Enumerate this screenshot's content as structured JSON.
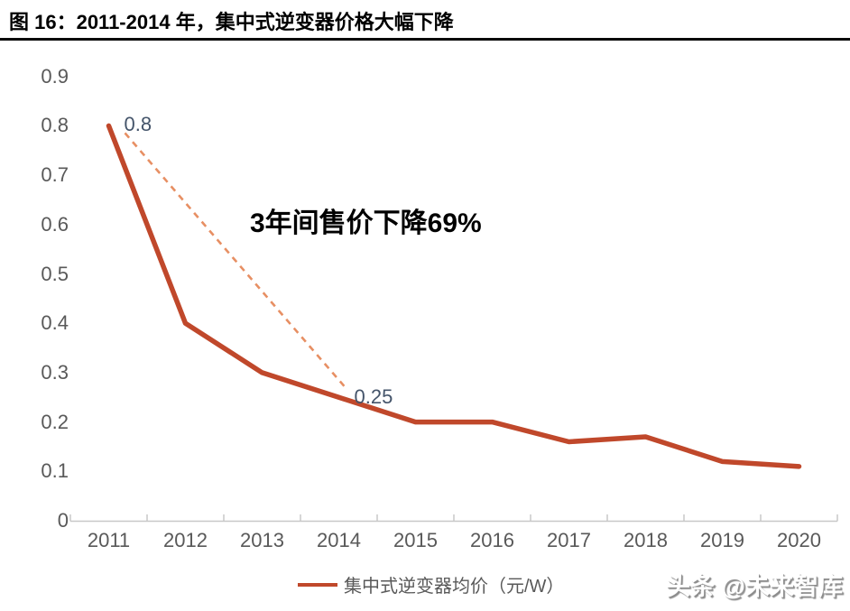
{
  "header": {
    "title": "图 16：2011-2014 年，集中式逆变器价格大幅下降"
  },
  "chart_data": {
    "type": "line",
    "title": "图 16：2011-2014 年，集中式逆变器价格大幅下降",
    "categories": [
      "2011",
      "2012",
      "2013",
      "2014",
      "2015",
      "2016",
      "2017",
      "2018",
      "2019",
      "2020"
    ],
    "series": [
      {
        "name": "集中式逆变器均价（元/W）",
        "values": [
          0.8,
          0.4,
          0.3,
          0.25,
          0.2,
          0.2,
          0.16,
          0.17,
          0.12,
          0.11
        ],
        "color": "#c0482b"
      }
    ],
    "trend_line": {
      "style": "dashed",
      "color": "#e78f63",
      "from_category": "2011",
      "from_value": 0.8,
      "to_category": "2014",
      "to_value": 0.25
    },
    "point_labels": [
      {
        "category": "2011",
        "value": 0.8,
        "text": "0.8"
      },
      {
        "category": "2014",
        "value": 0.25,
        "text": "0.25"
      }
    ],
    "annotation": "3年间售价下降69%",
    "xlabel": "",
    "ylabel": "",
    "ylim": [
      0,
      0.9
    ],
    "yticks": [
      "0",
      "0.1",
      "0.2",
      "0.3",
      "0.4",
      "0.5",
      "0.6",
      "0.7",
      "0.8",
      "0.9"
    ],
    "grid": false,
    "legend_position": "bottom"
  },
  "legend": {
    "label": "集中式逆变器均价（元/W）"
  },
  "watermark": {
    "text": "头条 @未来智库"
  },
  "colors": {
    "series_line": "#c0482b",
    "trend_line": "#e78f63",
    "axis": "#c8c8c8",
    "tick_label": "#595959",
    "data_label": "#44546a",
    "title": "#000000"
  }
}
